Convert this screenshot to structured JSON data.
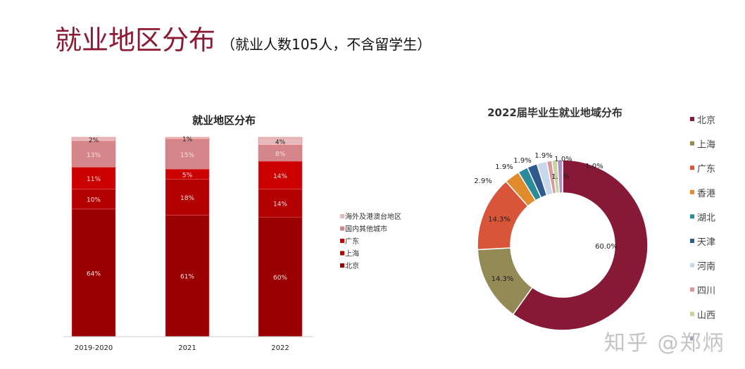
{
  "page": {
    "title": "就业地区分布",
    "subtitle": "（就业人数105人，不含留学生）",
    "watermark": "知乎 @郑炳"
  },
  "chart_data": [
    {
      "type": "bar",
      "stacked": true,
      "title": "就业地区分布",
      "categories": [
        "2019-2020",
        "2021",
        "2022"
      ],
      "series": [
        {
          "name": "北京",
          "values": [
            64,
            61,
            60
          ],
          "color": "#9a0000"
        },
        {
          "name": "上海",
          "values": [
            10,
            18,
            14
          ],
          "color": "#b30000"
        },
        {
          "name": "广东",
          "values": [
            11,
            5,
            14
          ],
          "color": "#cc0000"
        },
        {
          "name": "国内其他城市",
          "values": [
            13,
            15,
            8
          ],
          "color": "#d5868a"
        },
        {
          "name": "海外及港澳台地区",
          "values": [
            2,
            1,
            4
          ],
          "color": "#e8b9bb"
        }
      ],
      "ylim": [
        0,
        100
      ],
      "legend": "right",
      "grid": false
    },
    {
      "type": "pie",
      "donut": true,
      "title": "2022届毕业生就业地域分布",
      "labels": [
        "北京",
        "上海",
        "广东",
        "香港",
        "湖北",
        "天津",
        "河南",
        "四川",
        "山西",
        ""
      ],
      "values": [
        60.0,
        14.3,
        14.3,
        2.9,
        1.9,
        1.9,
        1.9,
        1.0,
        1.0,
        1.0
      ],
      "colors": [
        "#861a36",
        "#948a55",
        "#d8553a",
        "#e08c2c",
        "#2b8b9b",
        "#2e5a8e",
        "#c8d8ea",
        "#d99a9c",
        "#c6d3a2",
        "#a992c2"
      ],
      "legend": "right"
    }
  ]
}
